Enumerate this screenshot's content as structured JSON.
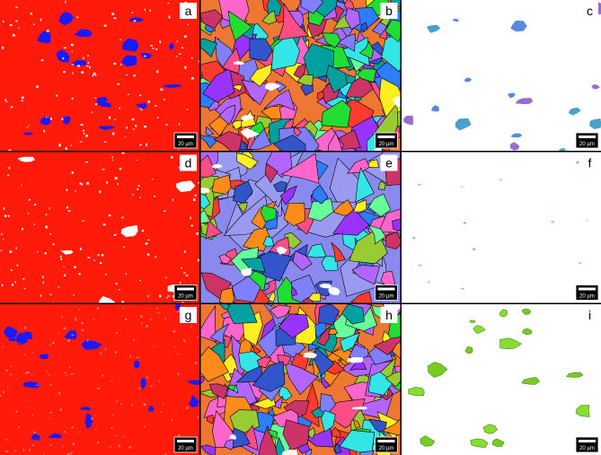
{
  "panels": [
    {
      "label": "a",
      "scale_bar": "20 µm"
    },
    {
      "label": "b",
      "scale_bar": "20 µm"
    },
    {
      "label": "c",
      "scale_bar": "20 µm"
    },
    {
      "label": "d",
      "scale_bar": "20 µm"
    },
    {
      "label": "e",
      "scale_bar": "20 µm"
    },
    {
      "label": "f",
      "scale_bar": "20 µm"
    },
    {
      "label": "g",
      "scale_bar": "20 µm"
    },
    {
      "label": "h",
      "scale_bar": "20 µm"
    },
    {
      "label": "i",
      "scale_bar": "20 µm"
    }
  ]
}
